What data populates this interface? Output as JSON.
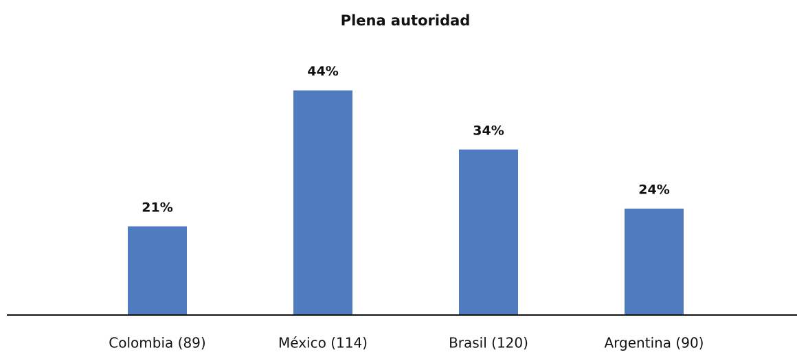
{
  "chart_data": {
    "type": "bar",
    "title": "Plena autoridad",
    "categories": [
      "Colombia (89)",
      "México (114)",
      "Brasil (120)",
      "Argentina (90)"
    ],
    "values": [
      21,
      44,
      34,
      24
    ],
    "value_labels": [
      "21%",
      "44%",
      "34%",
      "24%"
    ],
    "color": "#517bbf",
    "ylim": [
      6,
      50
    ]
  }
}
